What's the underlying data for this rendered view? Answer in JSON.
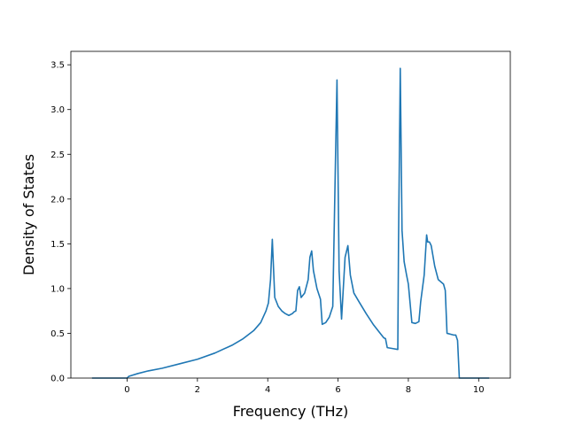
{
  "chart_data": {
    "type": "line",
    "title": "",
    "xlabel": "Frequency (THz)",
    "ylabel": "Density of States",
    "xlim": [
      -1.6,
      10.9
    ],
    "ylim": [
      0,
      3.65
    ],
    "xticks": [
      0,
      2,
      4,
      6,
      8,
      10
    ],
    "xtick_labels": [
      "0",
      "2",
      "4",
      "6",
      "8",
      "10"
    ],
    "yticks": [
      0.0,
      0.5,
      1.0,
      1.5,
      2.0,
      2.5,
      3.0,
      3.5
    ],
    "ytick_labels": [
      "0.0",
      "0.5",
      "1.0",
      "1.5",
      "2.0",
      "2.5",
      "3.0",
      "3.5"
    ],
    "grid": false,
    "line_color": "#1f77b4",
    "series": [
      {
        "x": [
          -1.0,
          0.0,
          0.05,
          0.3,
          0.6,
          1.0,
          1.5,
          2.0,
          2.5,
          3.0,
          3.3,
          3.6,
          3.8,
          3.95,
          4.02,
          4.08,
          4.13,
          4.2,
          4.3,
          4.4,
          4.5,
          4.6,
          4.7,
          4.75,
          4.8,
          4.85,
          4.9,
          4.95,
          5.05,
          5.15,
          5.2,
          5.25,
          5.3,
          5.4,
          5.5,
          5.55,
          5.65,
          5.75,
          5.85,
          5.93,
          5.97,
          6.03,
          6.1,
          6.2,
          6.28,
          6.35,
          6.45,
          6.6,
          6.8,
          7.0,
          7.2,
          7.3,
          7.35,
          7.4,
          7.55,
          7.7,
          7.72,
          7.77,
          7.82,
          7.88,
          7.95,
          8.0,
          8.1,
          8.2,
          8.25,
          8.3,
          8.35,
          8.45,
          8.52,
          8.55,
          8.6,
          8.65,
          8.75,
          8.85,
          9.0,
          9.05,
          9.1,
          9.3,
          9.35,
          9.4,
          9.45,
          9.55,
          10.3
        ],
        "y": [
          0.0,
          0.0,
          0.02,
          0.05,
          0.08,
          0.11,
          0.16,
          0.21,
          0.28,
          0.37,
          0.44,
          0.53,
          0.62,
          0.75,
          0.84,
          1.1,
          1.55,
          0.9,
          0.8,
          0.75,
          0.72,
          0.7,
          0.72,
          0.74,
          0.75,
          0.98,
          1.02,
          0.9,
          0.95,
          1.1,
          1.35,
          1.42,
          1.2,
          1.0,
          0.88,
          0.6,
          0.62,
          0.68,
          0.8,
          2.5,
          3.33,
          1.2,
          0.66,
          1.35,
          1.48,
          1.15,
          0.95,
          0.85,
          0.72,
          0.6,
          0.5,
          0.45,
          0.44,
          0.34,
          0.33,
          0.32,
          1.5,
          3.46,
          1.65,
          1.3,
          1.15,
          1.05,
          0.62,
          0.61,
          0.62,
          0.63,
          0.85,
          1.15,
          1.6,
          1.52,
          1.52,
          1.48,
          1.25,
          1.1,
          1.05,
          0.98,
          0.5,
          0.48,
          0.48,
          0.42,
          0.0,
          0.0,
          0.0
        ]
      }
    ]
  }
}
